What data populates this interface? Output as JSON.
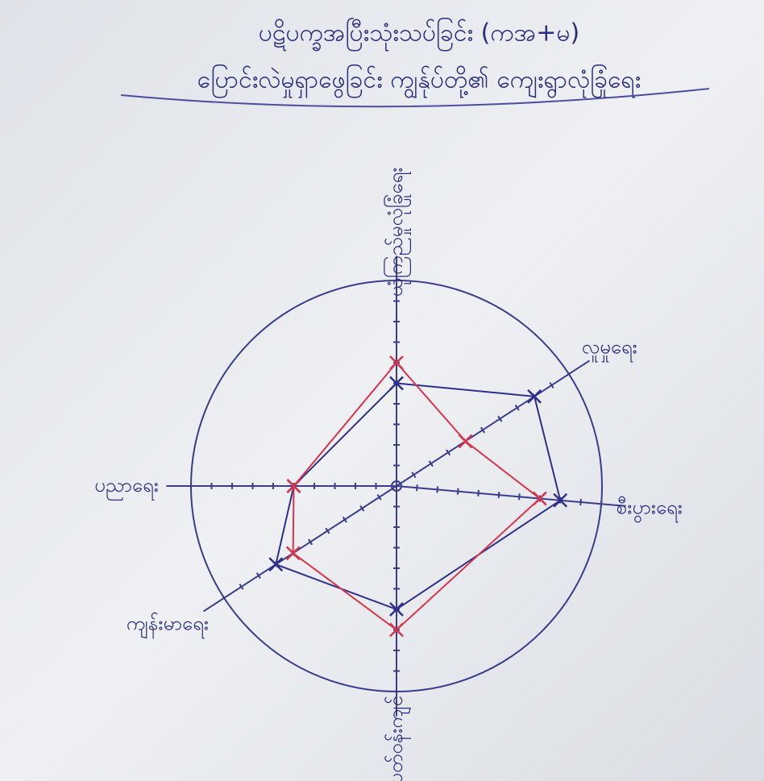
{
  "chart_data": {
    "type": "radar",
    "title": "ပဋိပက္ခအပြီးသုံးသပ်ခြင်း (ကအ+မ)",
    "subtitle": "ပြောင်းလဲမှုရှာဖွေခြင်း ကျွန်ုပ်တို့၏ ကျေးရွာလုံခြုံရေး",
    "categories": [
      "ယုံကြည်မှုလုံခြုံရေး",
      "လူမှုရေး",
      "စီးပွားရေး",
      "ပတ်ဝန်းကျင်",
      "ကျန်းမာရေး",
      "ပညာရေး"
    ],
    "series": [
      {
        "color": "#2e2f8a",
        "values": [
          5,
          8,
          8,
          6,
          7,
          5
        ]
      },
      {
        "color": "#d9344a",
        "values": [
          6,
          4,
          7,
          7,
          6,
          5
        ]
      }
    ],
    "rlim": [
      0,
      10
    ],
    "rticks": [
      1,
      2,
      3,
      4,
      5,
      6,
      7,
      8,
      9,
      10
    ]
  }
}
